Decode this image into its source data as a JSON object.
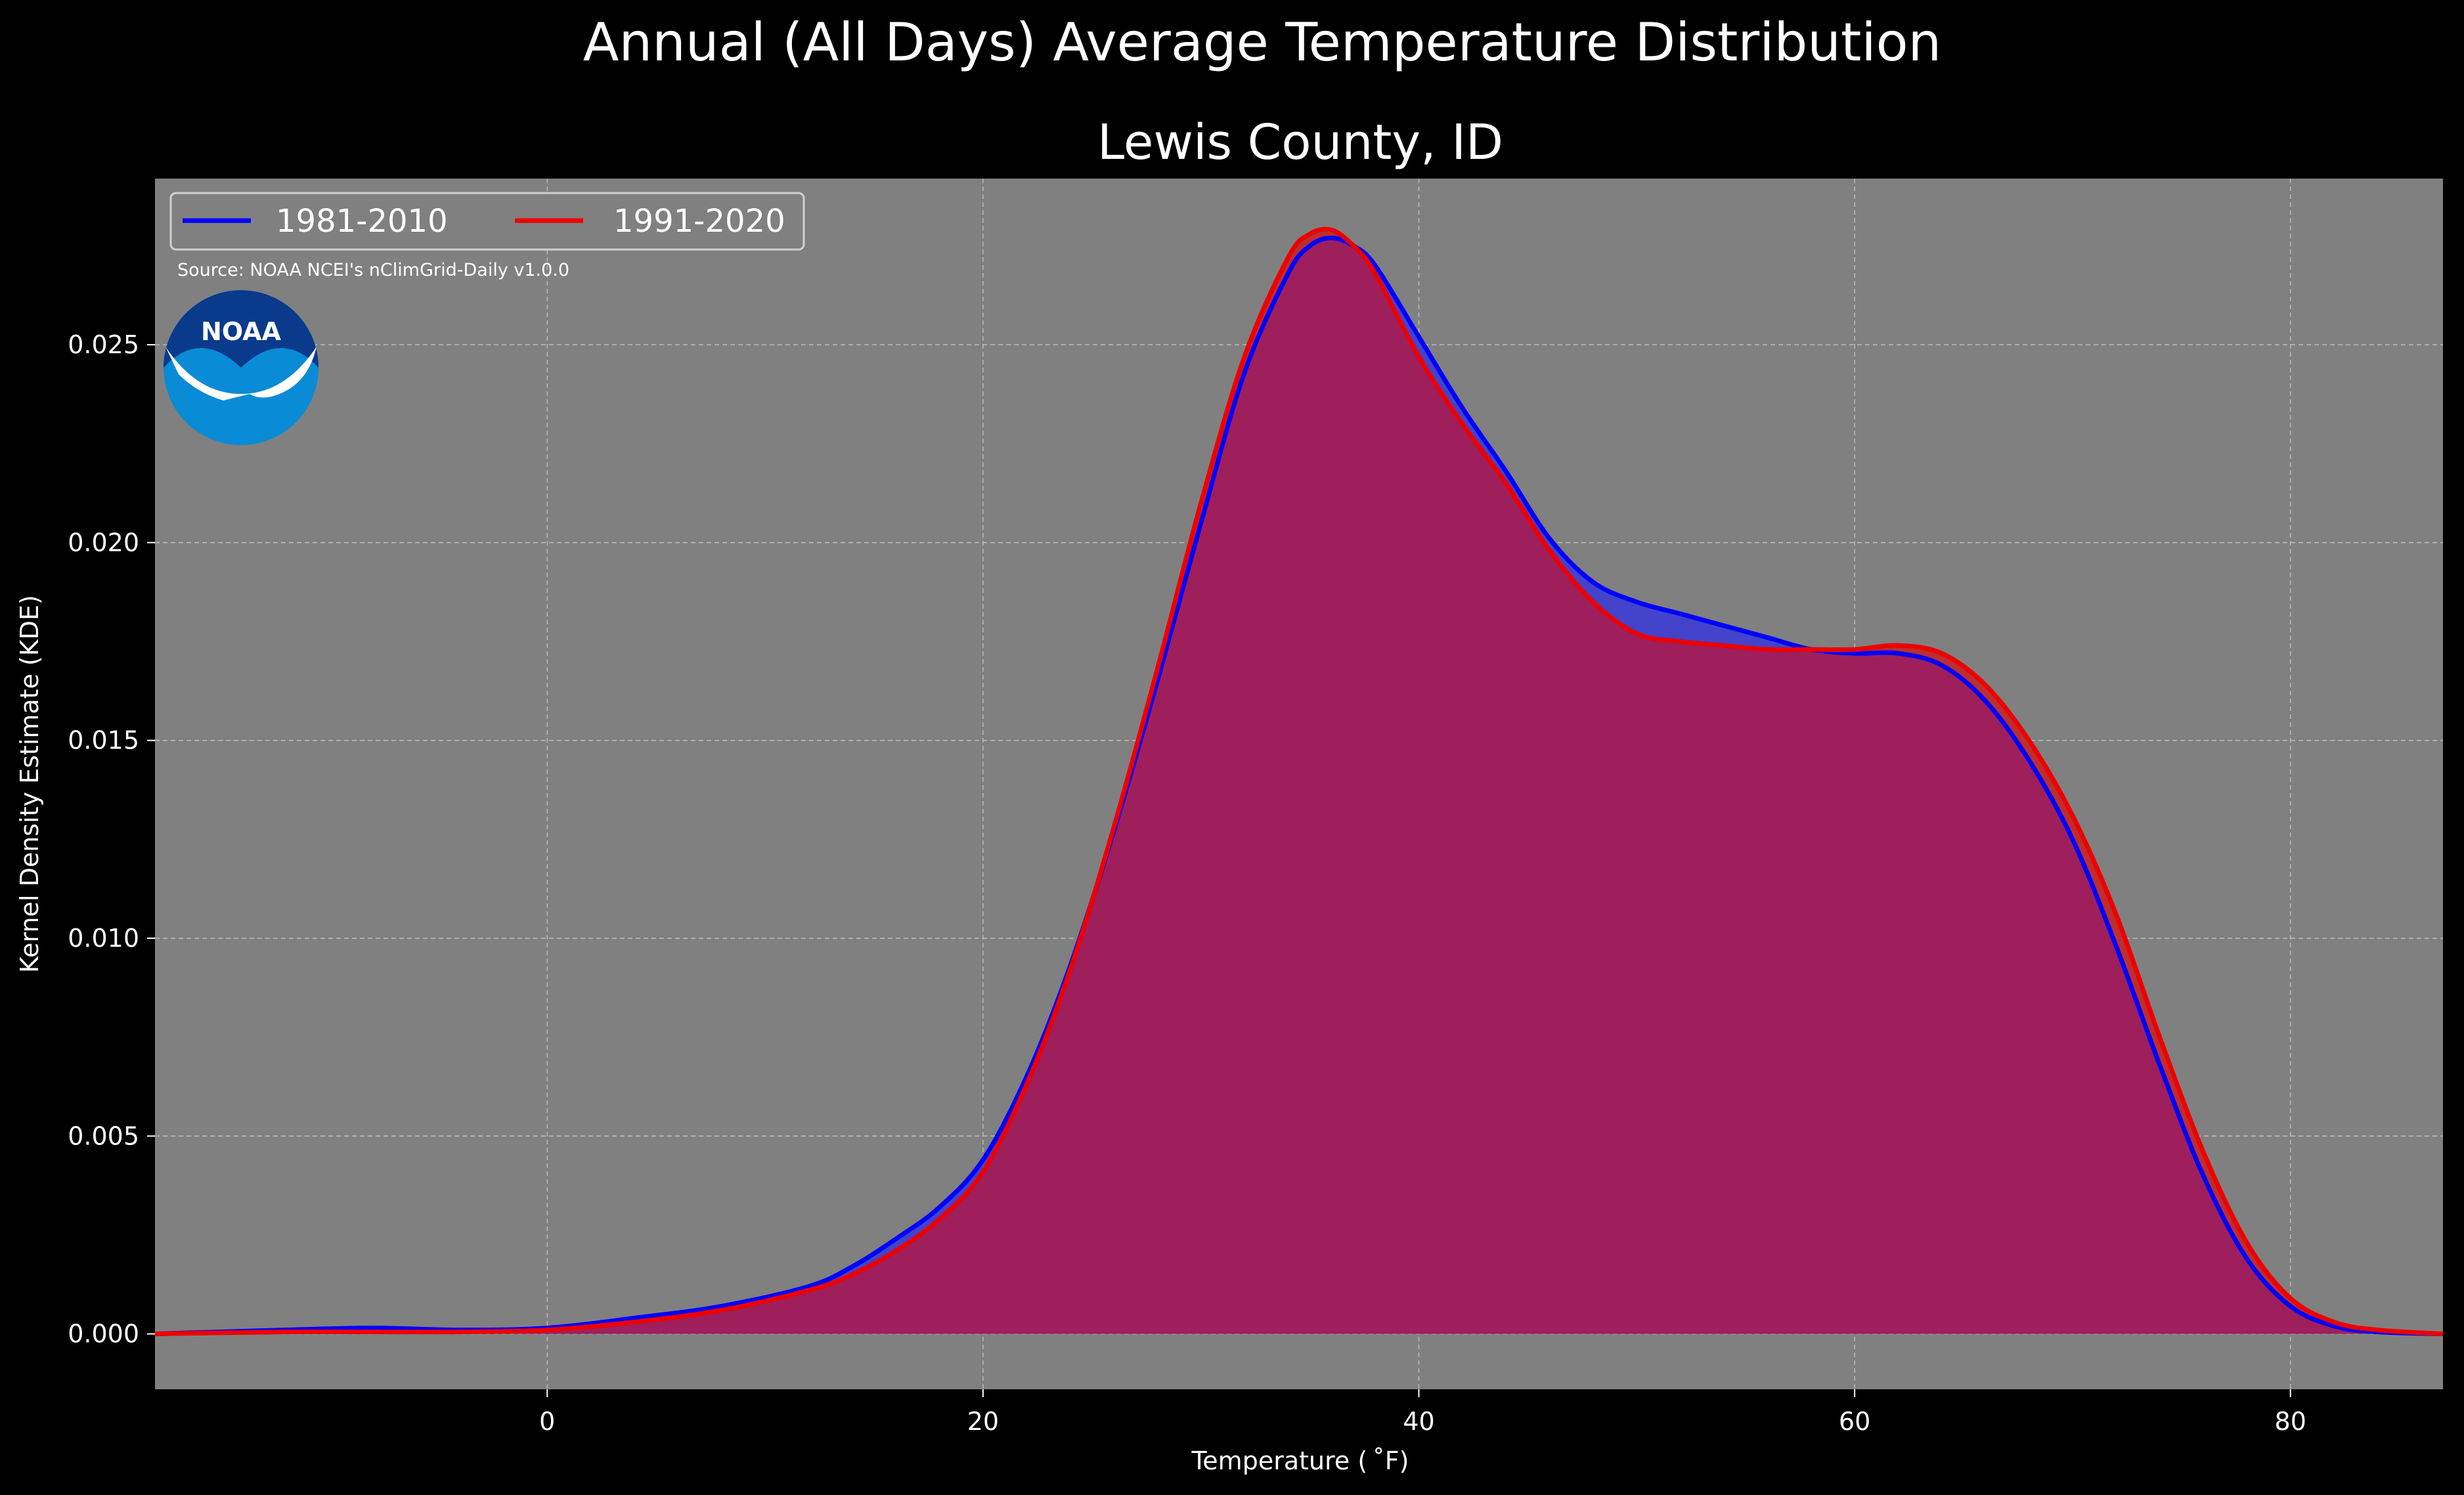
{
  "chart_data": {
    "type": "area",
    "title": "Annual (All Days) Average Temperature Distribution",
    "subtitle": "Lewis County, ID",
    "xlabel": "Temperature ($^\\circ$F)",
    "xlabel_display": "Temperature ( ˚F)",
    "ylabel": "Kernel Density Estimate (KDE)",
    "xlim": [
      -18,
      87
    ],
    "ylim": [
      -0.0014,
      0.0292
    ],
    "xticks": [
      0,
      20,
      40,
      60,
      80
    ],
    "xtick_labels": [
      "0",
      "20",
      "40",
      "60",
      "80"
    ],
    "yticks": [
      0.0,
      0.005,
      0.01,
      0.015,
      0.02,
      0.025
    ],
    "ytick_labels": [
      "0.000",
      "0.005",
      "0.010",
      "0.015",
      "0.020",
      "0.025"
    ],
    "grid": true,
    "legend_position": "top-left",
    "source": "Source: NOAA NCEI's nClimGrid-Daily v1.0.0",
    "logo_text": "NOAA",
    "colors": {
      "background": "#000000",
      "plot_background": "#808080",
      "fill_overlap": "#9e1f5c"
    },
    "series": [
      {
        "name": "1981-2010",
        "color": "#0000ff",
        "fill": "#3838d8",
        "x": [
          -18,
          -12,
          -8,
          -4,
          0,
          4,
          8,
          12,
          14,
          16,
          18,
          20,
          22,
          24,
          26,
          28,
          30,
          32,
          34,
          35,
          36,
          37,
          38,
          40,
          42,
          44,
          46,
          48,
          50,
          52,
          54,
          56,
          58,
          60,
          62,
          64,
          66,
          68,
          70,
          72,
          74,
          76,
          78,
          80,
          82,
          84,
          87
        ],
        "values": [
          0.0,
          0.0001,
          0.00015,
          0.0001,
          0.00015,
          0.0004,
          0.0007,
          0.0012,
          0.0017,
          0.0024,
          0.0032,
          0.0044,
          0.0065,
          0.0093,
          0.0127,
          0.0165,
          0.0205,
          0.0243,
          0.0268,
          0.0275,
          0.0277,
          0.0275,
          0.027,
          0.0252,
          0.0234,
          0.0218,
          0.0201,
          0.019,
          0.0185,
          0.0182,
          0.0179,
          0.0176,
          0.0173,
          0.0172,
          0.0172,
          0.0169,
          0.016,
          0.0145,
          0.0125,
          0.0098,
          0.0068,
          0.004,
          0.0019,
          0.0007,
          0.0002,
          5e-05,
          0.0
        ]
      },
      {
        "name": "1991-2020",
        "color": "#ee0000",
        "fill": "#c82020",
        "x": [
          -18,
          -12,
          -8,
          -4,
          0,
          4,
          8,
          12,
          14,
          16,
          18,
          20,
          22,
          24,
          26,
          28,
          30,
          32,
          34,
          35,
          36,
          37,
          38,
          40,
          42,
          44,
          46,
          48,
          50,
          52,
          54,
          56,
          58,
          60,
          62,
          64,
          66,
          68,
          70,
          72,
          74,
          76,
          78,
          80,
          82,
          84,
          87
        ],
        "values": [
          0.0,
          5e-05,
          5e-05,
          5e-05,
          0.0001,
          0.0003,
          0.0006,
          0.0011,
          0.0015,
          0.0021,
          0.0029,
          0.0041,
          0.0063,
          0.0092,
          0.0128,
          0.0168,
          0.021,
          0.0247,
          0.0272,
          0.0278,
          0.0279,
          0.0275,
          0.0268,
          0.0247,
          0.023,
          0.0215,
          0.0198,
          0.0185,
          0.0177,
          0.0175,
          0.0174,
          0.0173,
          0.0173,
          0.0173,
          0.0174,
          0.0172,
          0.0164,
          0.015,
          0.0131,
          0.0106,
          0.0075,
          0.0046,
          0.0023,
          0.0009,
          0.0003,
          0.0001,
          0.0
        ]
      }
    ]
  }
}
